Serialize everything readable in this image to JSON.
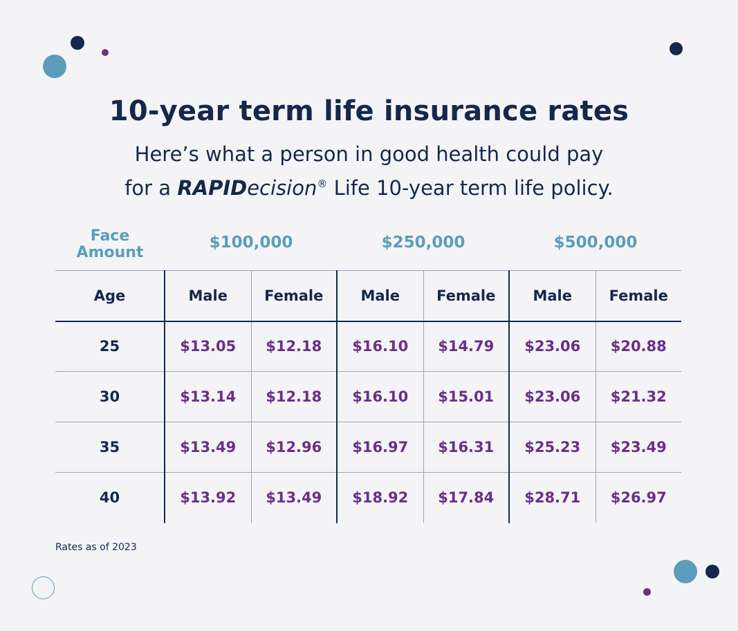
{
  "title": "10-year term life insurance rates",
  "subtitle": {
    "line1": "Here’s what a person in good health could pay",
    "prefix": "for a ",
    "brand_bold": "RAPID",
    "brand_italic": "ecision",
    "brand_mark": "®",
    "suffix": " Life 10-year term life policy."
  },
  "table": {
    "face_label_line1": "Face",
    "face_label_line2": "Amount",
    "face_amounts": [
      "$100,000",
      "$250,000",
      "$500,000"
    ],
    "age_header": "Age",
    "male_label": "Male",
    "female_label": "Female",
    "rows": [
      {
        "age": "25",
        "rates": [
          "$13.05",
          "$12.18",
          "$16.10",
          "$14.79",
          "$23.06",
          "$20.88"
        ]
      },
      {
        "age": "30",
        "rates": [
          "$13.14",
          "$12.18",
          "$16.10",
          "$15.01",
          "$23.06",
          "$21.32"
        ]
      },
      {
        "age": "35",
        "rates": [
          "$13.49",
          "$12.96",
          "$16.97",
          "$16.31",
          "$25.23",
          "$23.49"
        ]
      },
      {
        "age": "40",
        "rates": [
          "$13.92",
          "$13.49",
          "$18.92",
          "$17.84",
          "$28.71",
          "$26.97"
        ]
      }
    ]
  },
  "footnote": "Rates as of 2023",
  "colors": {
    "navy": "#14284b",
    "teal": "#5c9dba",
    "purple": "#6b2f86",
    "background": "#f4f4f7"
  }
}
